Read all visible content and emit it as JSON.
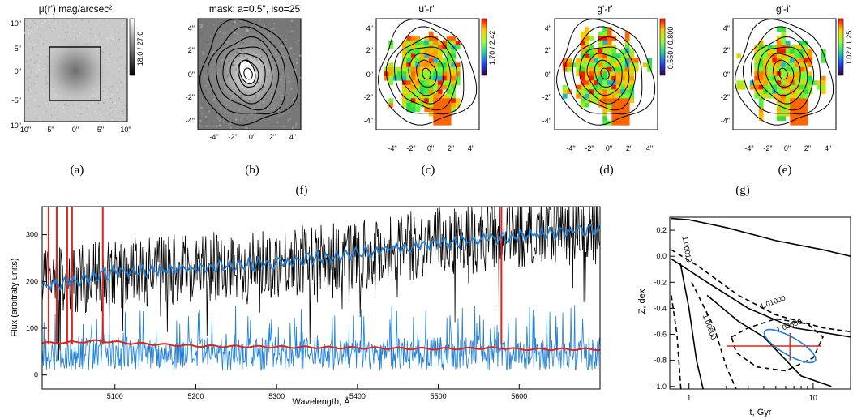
{
  "captions": [
    "(a)",
    "(b)",
    "(c)",
    "(d)",
    "(e)",
    "(f)",
    "(g)"
  ],
  "colors": {
    "black": "#000000",
    "blue": "#1e7fd6",
    "red": "#e0231b",
    "gray_bg": "#bdbdbd"
  },
  "chart_data": [
    {
      "id": "a",
      "type": "heatmap",
      "title": "μ(r') mag/arcsec²",
      "x_ticks": [
        "-10\"",
        "-5\"",
        "0\"",
        "5\"",
        "10\""
      ],
      "y_ticks": [
        "10\"",
        "5\"",
        "0\"",
        "-5\"",
        "-10\""
      ],
      "xlim": [
        -11,
        11
      ],
      "ylim": [
        -11,
        11
      ],
      "colorbar_label": "18.0 / 27.0",
      "inset_box": [
        -5,
        5,
        -5,
        5
      ]
    },
    {
      "id": "b",
      "type": "heatmap",
      "title": "mask: a=0.5\", iso=25",
      "x_ticks": [
        "-4\"",
        "-2\"",
        "0\"",
        "2\"",
        "4\""
      ],
      "y_ticks": [
        "4\"",
        "2\"",
        "0\"",
        "-2\"",
        "-4\""
      ],
      "xlim": [
        -5,
        5
      ],
      "ylim": [
        -5,
        5
      ],
      "contours": 7
    },
    {
      "id": "c",
      "type": "heatmap",
      "title": "u'-r'",
      "x_ticks": [
        "-4\"",
        "-2\"",
        "0\"",
        "2\"",
        "4\""
      ],
      "y_ticks": [
        "4\"",
        "2\"",
        "0\"",
        "-2\"",
        "-4\""
      ],
      "xlim": [
        -5,
        5
      ],
      "ylim": [
        -5,
        5
      ],
      "colorbar_label": "1.70 / 2.42"
    },
    {
      "id": "d",
      "type": "heatmap",
      "title": "g'-r'",
      "x_ticks": [
        "-4\"",
        "-2\"",
        "0\"",
        "2\"",
        "4\""
      ],
      "y_ticks": [
        "4\"",
        "2\"",
        "0\"",
        "-2\"",
        "-4\""
      ],
      "xlim": [
        -5,
        5
      ],
      "ylim": [
        -5,
        5
      ],
      "colorbar_label": "0.550 / 0.800"
    },
    {
      "id": "e",
      "type": "heatmap",
      "title": "g'-i'",
      "x_ticks": [
        "-4\"",
        "-2\"",
        "0\"",
        "2\"",
        "4\""
      ],
      "y_ticks": [
        "4\"",
        "2\"",
        "0\"",
        "-2\"",
        "-4\""
      ],
      "xlim": [
        -5,
        5
      ],
      "ylim": [
        -5,
        5
      ],
      "colorbar_label": "1.02 / 1.25"
    },
    {
      "id": "f",
      "type": "line",
      "xlabel": "Wavelength, Å",
      "ylabel": "Flux (arbitraty units)",
      "xlim": [
        5010,
        5700
      ],
      "ylim": [
        -30,
        360
      ],
      "x_ticks": [
        "5100",
        "5200",
        "5300",
        "5400",
        "5500",
        "5600"
      ],
      "y_ticks": [
        "0",
        "100",
        "200",
        "300"
      ],
      "series": [
        {
          "color": "#000000",
          "x": [
            5010,
            5050,
            5100,
            5200,
            5300,
            5400,
            5500,
            5600,
            5700
          ],
          "y": [
            200,
            205,
            215,
            230,
            240,
            260,
            285,
            300,
            315
          ]
        },
        {
          "color": "#1e7fd6",
          "x": [
            5010,
            5050,
            5100,
            5150,
            5200,
            5250,
            5300,
            5350,
            5400,
            5450,
            5500,
            5550,
            5600,
            5650,
            5700
          ],
          "y": [
            190,
            200,
            220,
            225,
            228,
            235,
            238,
            250,
            260,
            272,
            280,
            290,
            298,
            305,
            312
          ]
        },
        {
          "color": "#e0231b",
          "x": [
            5010,
            5050,
            5080,
            5120,
            5200,
            5300,
            5400,
            5500,
            5578,
            5600,
            5700
          ],
          "y": [
            68,
            70,
            73,
            68,
            62,
            60,
            58,
            56,
            58,
            55,
            55
          ]
        },
        {
          "color": "#1e7fd6",
          "x": [
            5010,
            5700
          ],
          "y": [
            35,
            35
          ]
        }
      ],
      "emission_lines_x": [
        5018,
        5028,
        5041,
        5047,
        5085,
        5578
      ]
    },
    {
      "id": "g",
      "type": "line",
      "xlabel": "t, Gyr",
      "ylabel": "Z, dex",
      "xlim": [
        0.7,
        20
      ],
      "xscale": "log",
      "ylim": [
        -1.02,
        0.3
      ],
      "x_ticks": [
        "1",
        "10"
      ],
      "y_ticks": [
        "0.2",
        "0.0",
        "-0.2",
        "-0.4",
        "-0.6",
        "-0.8",
        "-1.0"
      ],
      "contour_labels": [
        "1.01000",
        "1.00600",
        "1.00600",
        "1.00010"
      ],
      "best_fit": {
        "t": 6.5,
        "z": -0.69,
        "t_err": [
          2.0,
          11.5
        ],
        "z_err": [
          -0.8,
          -0.59
        ]
      }
    }
  ]
}
